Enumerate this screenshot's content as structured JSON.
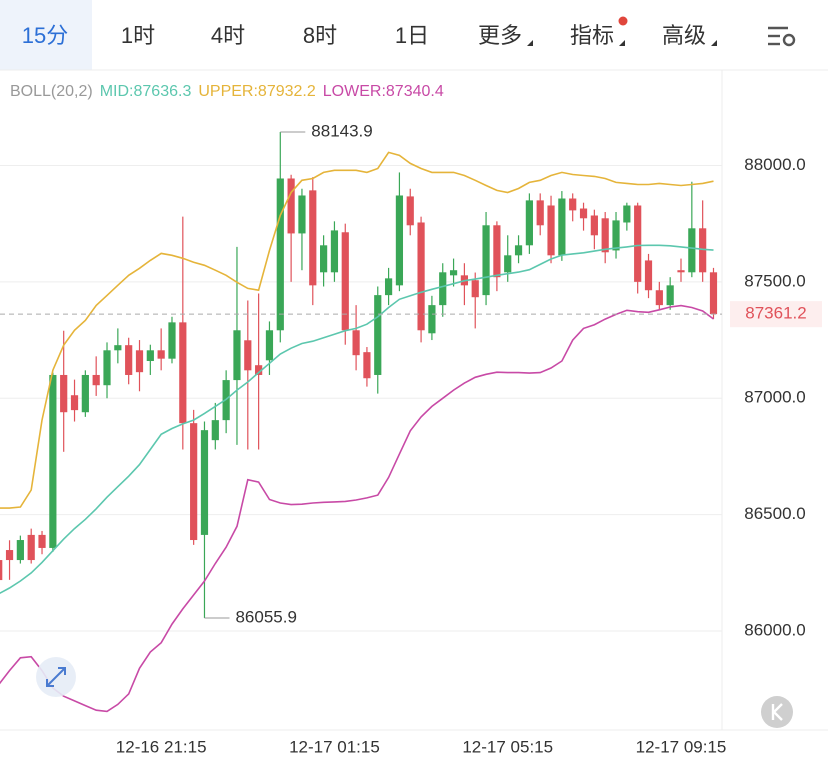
{
  "tabs": [
    "15分",
    "1时",
    "4时",
    "8时",
    "1日",
    "更多",
    "指标",
    "高级"
  ],
  "chart_data": {
    "type": "candlestick",
    "title": "BOLL(20,2)",
    "legend_separator": ":",
    "categories": [
      null,
      null,
      null,
      null,
      null,
      null,
      null,
      null,
      null,
      null,
      null,
      null,
      null,
      null,
      null,
      "12-16 21:15",
      null,
      null,
      null,
      null,
      null,
      null,
      null,
      null,
      null,
      null,
      null,
      null,
      null,
      null,
      null,
      "12-17 01:15",
      null,
      null,
      null,
      null,
      null,
      null,
      null,
      null,
      null,
      null,
      null,
      null,
      null,
      null,
      null,
      "12-17 05:15",
      null,
      null,
      null,
      null,
      null,
      null,
      null,
      null,
      null,
      null,
      null,
      null,
      null,
      null,
      null,
      "12-17 09:15",
      null,
      null,
      null
    ],
    "candles": {
      "up_color": "#3aa757",
      "down_color": "#e0525a",
      "open": [
        86305,
        86348,
        86305,
        86413,
        86413,
        86357,
        87100,
        87013,
        86940,
        87100,
        87056,
        87206,
        87228,
        87206,
        87160,
        87206,
        87170,
        87326,
        86893,
        86413,
        86820,
        86906,
        87078,
        87249,
        87142,
        87163,
        87292,
        87944,
        87708,
        87893,
        87541,
        87541,
        87713,
        87292,
        87198,
        87100,
        87443,
        87485,
        87867,
        87755,
        87279,
        87400,
        87528,
        87528,
        87507,
        87443,
        87743,
        87541,
        87614,
        87657,
        87850,
        87828,
        87614,
        87858,
        87815,
        87785,
        87773,
        87635,
        87755,
        87828,
        87592,
        87464,
        87400,
        87550,
        87541,
        87730,
        87541
      ],
      "high": [
        86330,
        86390,
        86410,
        86440,
        86430,
        87110,
        87290,
        87080,
        87120,
        87180,
        87240,
        87300,
        87260,
        87250,
        87230,
        87300,
        87350,
        87780,
        86950,
        86900,
        86980,
        87120,
        87650,
        87420,
        87450,
        87330,
        88143.9,
        87960,
        87900,
        87950,
        87700,
        87760,
        87750,
        87400,
        87220,
        87480,
        87560,
        87970,
        87900,
        87780,
        87440,
        87580,
        87600,
        87580,
        87540,
        87800,
        87760,
        87700,
        87700,
        87880,
        87880,
        87870,
        87890,
        87880,
        87840,
        87810,
        87800,
        87800,
        87840,
        87840,
        87620,
        87500,
        87520,
        87600,
        87930,
        87850,
        87560
      ],
      "low": [
        86200,
        86220,
        86290,
        86290,
        86330,
        86340,
        86770,
        86900,
        86920,
        87010,
        87000,
        87150,
        87060,
        87030,
        87100,
        87120,
        87150,
        86780,
        86370,
        86055.9,
        86780,
        86850,
        86800,
        86780,
        86780,
        87100,
        87240,
        87500,
        87550,
        87400,
        87480,
        87500,
        87230,
        87120,
        87050,
        87020,
        87400,
        87460,
        87700,
        87240,
        87250,
        87350,
        87480,
        87400,
        87300,
        87400,
        87460,
        87500,
        87580,
        87620,
        87700,
        87580,
        87590,
        87760,
        87720,
        87640,
        87580,
        87600,
        87720,
        87450,
        87430,
        87380,
        87380,
        87500,
        87520,
        87500,
        87340
      ],
      "close": [
        86219,
        86305,
        86391,
        86305,
        86357,
        87100,
        86940,
        86949,
        87100,
        87056,
        87206,
        87228,
        87100,
        87112,
        87206,
        87170,
        87326,
        86893,
        86391,
        86863,
        86906,
        87078,
        87292,
        87120,
        87100,
        87292,
        87944,
        87708,
        87871,
        87485,
        87657,
        87721,
        87292,
        87185,
        87086,
        87443,
        87515,
        87871,
        87743,
        87292,
        87400,
        87541,
        87550,
        87485,
        87434,
        87743,
        87520,
        87614,
        87657,
        87850,
        87743,
        87614,
        87858,
        87807,
        87773,
        87700,
        87627,
        87764,
        87828,
        87500,
        87464,
        87400,
        87485,
        87541,
        87730,
        87541,
        87361.2
      ]
    },
    "series": [
      {
        "name": "MID",
        "color": "#5cc7ae",
        "values": [
          86160,
          86185,
          86215,
          86250,
          86295,
          86345,
          86395,
          86440,
          86480,
          86525,
          86575,
          86620,
          86665,
          86715,
          86780,
          86845,
          86870,
          86890,
          86906,
          86935,
          86965,
          86995,
          87035,
          87070,
          87110,
          87150,
          87190,
          87215,
          87235,
          87245,
          87260,
          87275,
          87290,
          87300,
          87318,
          87350,
          87390,
          87425,
          87440,
          87455,
          87468,
          87480,
          87492,
          87505,
          87512,
          87520,
          87528,
          87535,
          87542,
          87552,
          87575,
          87598,
          87615,
          87620,
          87625,
          87632,
          87640,
          87645,
          87650,
          87656,
          87657,
          87657,
          87655,
          87650,
          87645,
          87640,
          87636.3
        ]
      },
      {
        "name": "UPPER",
        "color": "#e5b43a",
        "values": [
          86528,
          86528,
          86533,
          86606,
          86906,
          87121,
          87228,
          87292,
          87335,
          87399,
          87442,
          87485,
          87528,
          87558,
          87592,
          87622,
          87614,
          87601,
          87584,
          87571,
          87550,
          87528,
          87498,
          87472,
          87464,
          87635,
          87786,
          87884,
          87936,
          87944,
          87970,
          87979,
          87979,
          87979,
          87970,
          87987,
          88056,
          88043,
          88009,
          87987,
          87970,
          87970,
          87970,
          87957,
          87936,
          87914,
          87893,
          87884,
          87901,
          87927,
          87936,
          87957,
          87970,
          87961,
          87957,
          87953,
          87944,
          87927,
          87923,
          87918,
          87918,
          87923,
          87918,
          87914,
          87918,
          87923,
          87932.2
        ]
      },
      {
        "name": "LOWER",
        "color": "#c84aa6",
        "values": [
          85770,
          85830,
          85885,
          85890,
          85830,
          85755,
          85720,
          85700,
          85680,
          85660,
          85655,
          85685,
          85730,
          85840,
          85910,
          85950,
          86030,
          86095,
          86155,
          86215,
          86290,
          86360,
          86450,
          86650,
          86640,
          86565,
          86550,
          86543,
          86545,
          86550,
          86553,
          86555,
          86557,
          86563,
          86572,
          86584,
          86660,
          86760,
          86860,
          86920,
          86965,
          87000,
          87035,
          87065,
          87090,
          87103,
          87112,
          87110,
          87110,
          87108,
          87110,
          87130,
          87160,
          87250,
          87300,
          87316,
          87340,
          87360,
          87378,
          87372,
          87369,
          87380,
          87392,
          87398,
          87390,
          87375,
          87340.4
        ]
      }
    ],
    "ylim": [
      85575,
      88410
    ],
    "yticks": [
      {
        "value": 86000,
        "label": "86000.0"
      },
      {
        "value": 86500,
        "label": "86500.0"
      },
      {
        "value": 87000,
        "label": "87000.0"
      },
      {
        "value": 87500,
        "label": "87500.0"
      },
      {
        "value": 88000,
        "label": "88000.0"
      }
    ],
    "grid": true
  }
}
